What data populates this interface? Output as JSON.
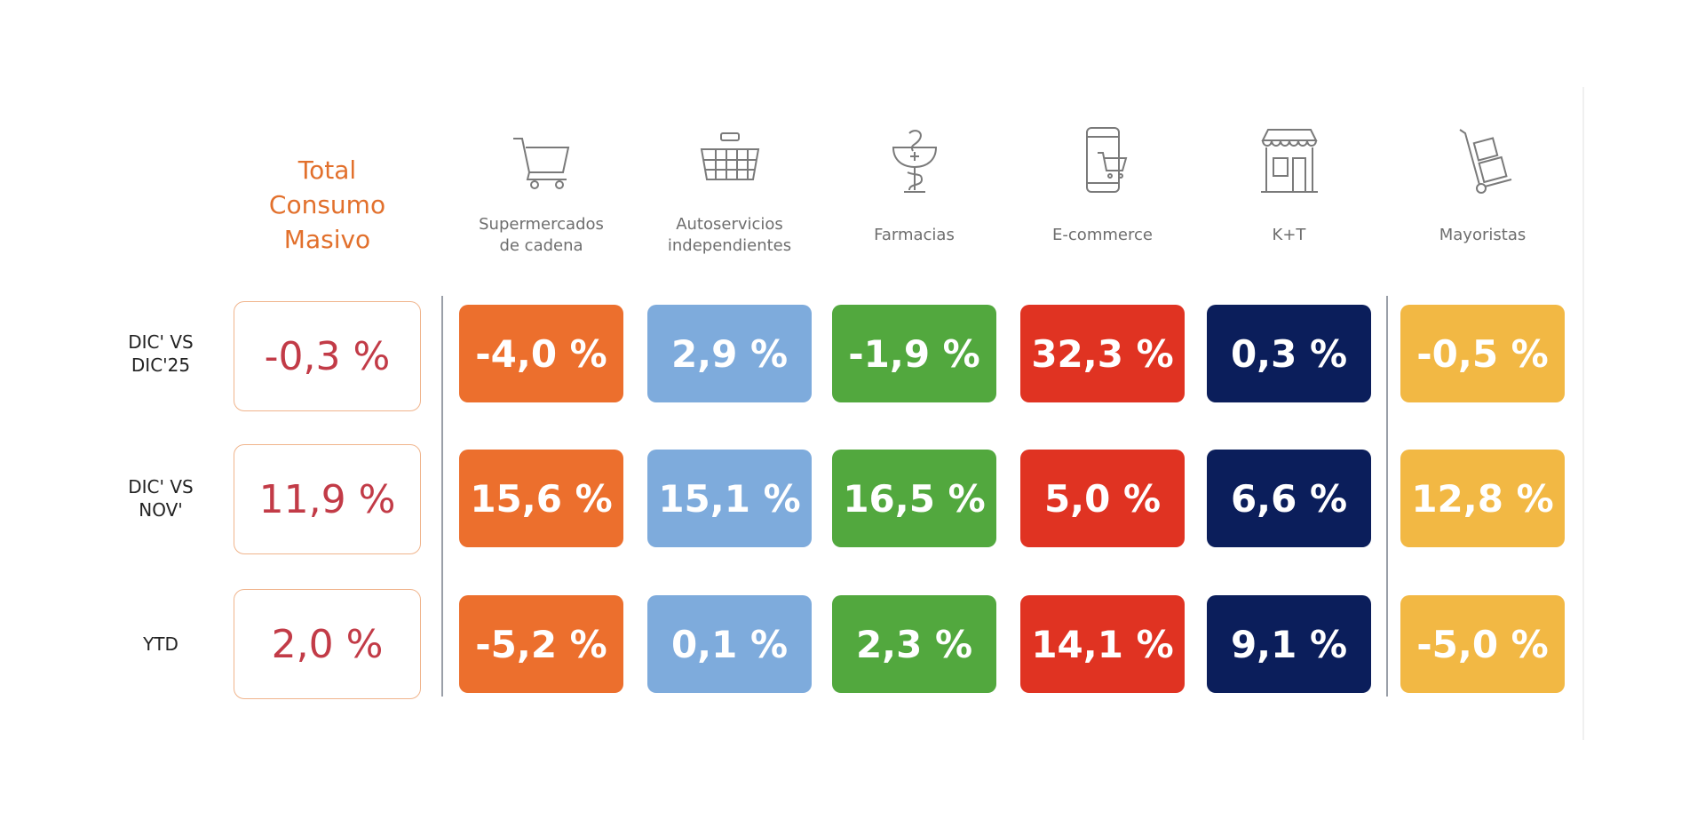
{
  "title": [
    "Total",
    "Consumo",
    "Masivo"
  ],
  "rows": [
    {
      "label": [
        "DIC' VS",
        "DIC'25"
      ],
      "total": "-0,3 %",
      "values": [
        "-4,0 %",
        "2,9 %",
        "-1,9 %",
        "32,3 %",
        "0,3 %",
        "-0,5 %"
      ]
    },
    {
      "label": [
        "DIC' VS",
        "NOV'"
      ],
      "total": "11,9 %",
      "values": [
        "15,6 %",
        "15,1 %",
        "16,5 %",
        "5,0 %",
        "6,6 %",
        "12,8 %"
      ]
    },
    {
      "label": [
        "YTD",
        ""
      ],
      "total": "2,0 %",
      "values": [
        "-5,2 %",
        "0,1 %",
        "2,3 %",
        "14,1 %",
        "9,1 %",
        "-5,0 %"
      ]
    }
  ],
  "columns": [
    {
      "label": [
        "Supermercados",
        "de cadena"
      ],
      "icon": "shopping-cart-icon",
      "color": "#ec6f2d"
    },
    {
      "label": [
        "Autoservicios",
        "independientes"
      ],
      "icon": "basket-icon",
      "color": "#7eabdc"
    },
    {
      "label": [
        "Farmacias",
        ""
      ],
      "icon": "pharmacy-icon",
      "color": "#52a83e"
    },
    {
      "label": [
        "E-commerce",
        ""
      ],
      "icon": "mobile-cart-icon",
      "color": "#e03322"
    },
    {
      "label": [
        "K+T",
        ""
      ],
      "icon": "storefront-icon",
      "color": "#0b1e5b"
    },
    {
      "label": [
        "Mayoristas",
        ""
      ],
      "icon": "hand-truck-icon",
      "color": "#f2b844"
    }
  ]
}
